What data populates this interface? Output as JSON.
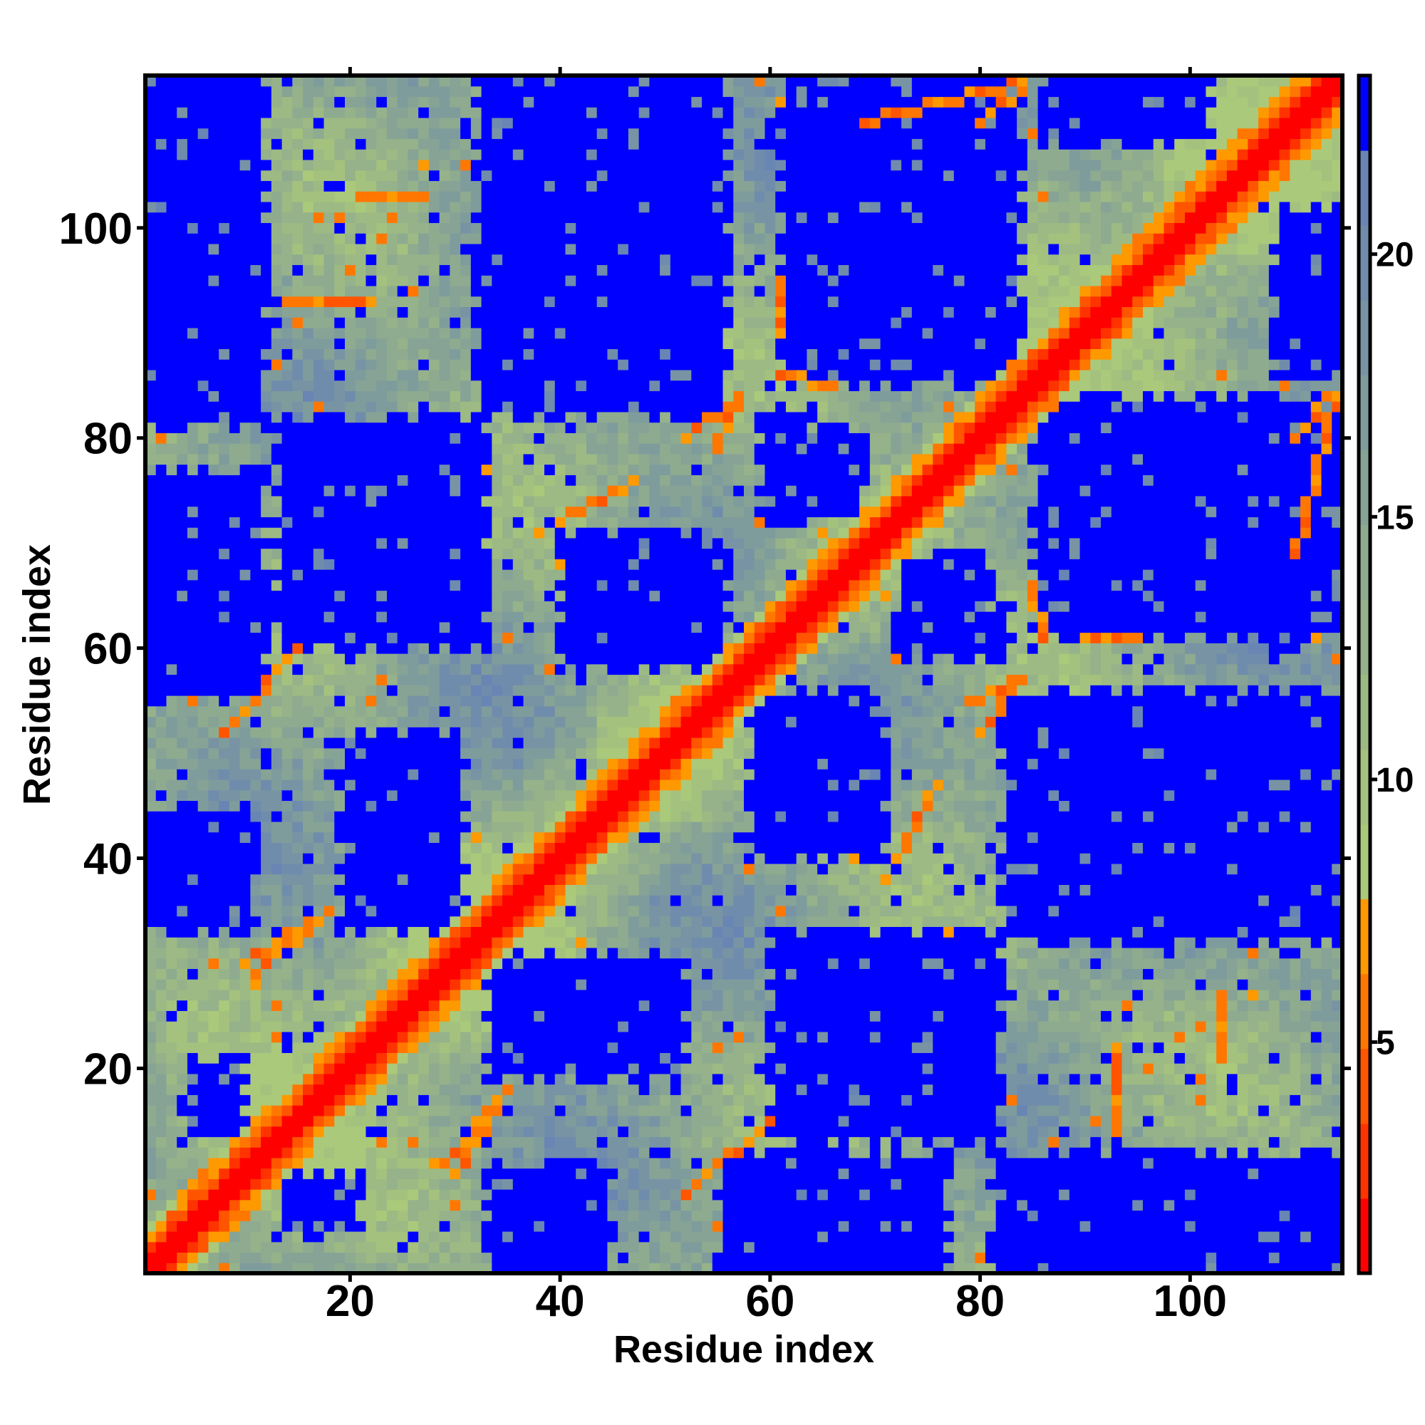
{
  "chart_data": {
    "type": "heatmap",
    "title": "",
    "xlabel": "Residue index",
    "ylabel": "Residue index",
    "n_residues": 114,
    "xlim": [
      0.5,
      114.5
    ],
    "ylim": [
      0.5,
      114.5
    ],
    "x_ticks": [
      20,
      40,
      60,
      80,
      100
    ],
    "y_ticks": [
      20,
      40,
      60,
      80,
      100
    ],
    "x_tick_labels": [
      "20",
      "40",
      "60",
      "80",
      "100"
    ],
    "y_tick_labels": [
      "20",
      "40",
      "60",
      "80",
      "100"
    ],
    "symmetric": true,
    "colorbar": {
      "range": [
        0.6,
        23.4
      ],
      "ticks": [
        5,
        10,
        15,
        20
      ],
      "tick_labels": [
        "5",
        "10",
        "15",
        "20"
      ],
      "colors_low_to_high": [
        "#ff0000",
        "#ff3300",
        "#ff5500",
        "#ff7700",
        "#ff9900",
        "#abc97a",
        "#a4c27e",
        "#9dba84",
        "#95b28a",
        "#8eab90",
        "#86a396",
        "#7f9c9d",
        "#7894a4",
        "#708cac",
        "#6885b4",
        "#0000ff"
      ]
    },
    "note_values": "distance-like values: diagonal lowest (red), far regions above 22 (blue)",
    "far_blocks": [
      {
        "x": [
          1,
          11
        ],
        "y": [
          106,
          114
        ]
      },
      {
        "x": [
          1,
          11
        ],
        "y": [
          82,
          102
        ]
      },
      {
        "x": [
          1,
          11
        ],
        "y": [
          56,
          70
        ]
      },
      {
        "x": [
          33,
          55
        ],
        "y": [
          83,
          114
        ]
      },
      {
        "x": [
          14,
          30
        ],
        "y": [
          61,
          81
        ]
      },
      {
        "x": [
          20,
          30
        ],
        "y": [
          34,
          51
        ]
      },
      {
        "x": [
          1,
          10
        ],
        "y": [
          34,
          44
        ]
      },
      {
        "x": [
          62,
          83
        ],
        "y": [
          86,
          114
        ]
      },
      {
        "x": [
          41,
          54
        ],
        "y": [
          60,
          68
        ]
      },
      {
        "x": [
          60,
          68
        ],
        "y": [
          73,
          80
        ]
      },
      {
        "x": [
          1,
          11
        ],
        "y": [
          57,
          76
        ]
      },
      {
        "x": [
          35,
          50
        ],
        "y": [
          20,
          30
        ]
      },
      {
        "x": [
          14,
          20
        ],
        "y": [
          5,
          9
        ]
      },
      {
        "x": [
          2,
          10
        ],
        "y": [
          34,
          44
        ]
      },
      {
        "x": [
          109,
          114
        ],
        "y": [
          87,
          101
        ]
      },
      {
        "x": [
          33,
          55
        ],
        "y": [
          84,
          114
        ]
      },
      {
        "x": [
          66,
          83
        ],
        "y": [
          86,
          106
        ]
      },
      {
        "x": [
          41,
          55
        ],
        "y": [
          59,
          70
        ]
      },
      {
        "x": [
          1,
          11
        ],
        "y": [
          86,
          114
        ]
      },
      {
        "x": [
          16,
          32
        ],
        "y": [
          61,
          70
        ]
      },
      {
        "x": [
          61,
          81
        ],
        "y": [
          16,
          32
        ]
      },
      {
        "x": [
          59,
          70
        ],
        "y": [
          41,
          54
        ]
      },
      {
        "x": [
          86,
          106
        ],
        "y": [
          66,
          83
        ]
      },
      {
        "x": [
          84,
          114
        ],
        "y": [
          33,
          55
        ]
      },
      {
        "x": [
          86,
          114
        ],
        "y": [
          1,
          11
        ]
      },
      {
        "x": [
          57,
          76
        ],
        "y": [
          1,
          11
        ]
      },
      {
        "x": [
          34,
          44
        ],
        "y": [
          2,
          10
        ]
      },
      {
        "x": [
          76,
          82
        ],
        "y": [
          60,
          63
        ]
      }
    ],
    "contacts": [
      {
        "from": [
          8,
          52
        ],
        "to": [
          15,
          60
        ]
      },
      {
        "from": [
          10,
          30
        ],
        "to": [
          18,
          35
        ]
      },
      {
        "from": [
          40,
          72
        ],
        "to": [
          47,
          76
        ]
      },
      {
        "from": [
          52,
          80
        ],
        "to": [
          57,
          84
        ]
      },
      {
        "from": [
          61,
          86
        ],
        "to": [
          66,
          85
        ]
      },
      {
        "from": [
          69,
          110
        ],
        "to": [
          84,
          114
        ]
      },
      {
        "from": [
          14,
          93
        ],
        "to": [
          22,
          93
        ]
      },
      {
        "from": [
          21,
          103
        ],
        "to": [
          27,
          103
        ]
      },
      {
        "from": [
          55,
          79
        ],
        "to": [
          57,
          84
        ]
      },
      {
        "from": [
          61,
          90
        ],
        "to": [
          61,
          95
        ]
      },
      {
        "from": [
          11,
          29
        ],
        "to": [
          17,
          34
        ]
      },
      {
        "from": [
          80,
          110
        ],
        "to": [
          84,
          113
        ]
      },
      {
        "from": [
          33,
          36
        ],
        "to": [
          42,
          41
        ]
      },
      {
        "from": [
          88,
          92
        ],
        "to": [
          95,
          97
        ]
      }
    ]
  }
}
